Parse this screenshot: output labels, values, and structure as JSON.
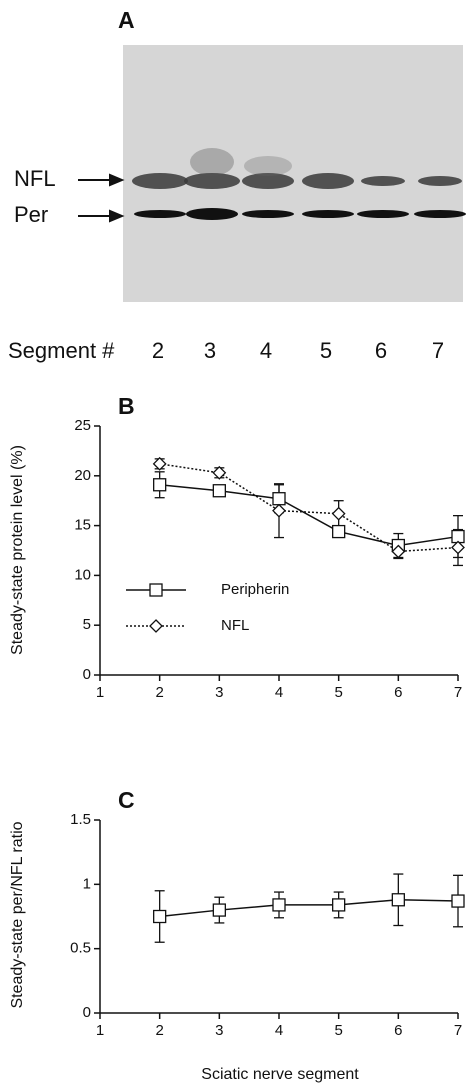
{
  "blot": {
    "panel": "A",
    "row_labels": [
      "NFL",
      "Per"
    ],
    "segment_label": "Segment #",
    "lanes": [
      "2",
      "3",
      "4",
      "5",
      "6",
      "7"
    ]
  },
  "chart_data": [
    {
      "type": "line",
      "panel": "B",
      "ylabel": "Steady-state protein level (%)",
      "xlim": [
        1,
        7
      ],
      "xticks": [
        1,
        2,
        3,
        4,
        5,
        6,
        7
      ],
      "ylim": [
        0,
        25
      ],
      "yticks": [
        0,
        5,
        10,
        15,
        20,
        25
      ],
      "legend": "lower left",
      "series": [
        {
          "name": "Peripherin",
          "color": "#111111",
          "marker": "square",
          "linestyle": "solid",
          "x": [
            2,
            3,
            4,
            5,
            6,
            7
          ],
          "values": [
            19.1,
            18.5,
            17.7,
            14.4,
            13.0,
            13.9
          ],
          "errors": [
            1.3,
            0.5,
            1.4,
            0.5,
            1.2,
            2.1
          ]
        },
        {
          "name": "NFL",
          "color": "#111111",
          "marker": "diamond",
          "linestyle": "dotted",
          "x": [
            2,
            3,
            4,
            5,
            6,
            7
          ],
          "values": [
            21.2,
            20.3,
            16.5,
            16.2,
            12.4,
            12.8
          ],
          "errors": [
            0.5,
            0.5,
            2.7,
            1.3,
            0.7,
            1.8
          ]
        }
      ]
    },
    {
      "type": "line",
      "panel": "C",
      "ylabel": "Steady-state per/NFL ratio",
      "xlabel": "Sciatic nerve segment",
      "xlim": [
        1,
        7
      ],
      "xticks": [
        1,
        2,
        3,
        4,
        5,
        6,
        7
      ],
      "ylim": [
        0,
        1.5
      ],
      "yticks": [
        0,
        0.5,
        1,
        1.5
      ],
      "series": [
        {
          "color": "#111111",
          "marker": "square",
          "linestyle": "solid",
          "x": [
            2,
            3,
            4,
            5,
            6,
            7
          ],
          "values": [
            0.75,
            0.8,
            0.84,
            0.84,
            0.88,
            0.87
          ],
          "errors": [
            0.2,
            0.1,
            0.1,
            0.1,
            0.2,
            0.2
          ]
        }
      ]
    }
  ]
}
